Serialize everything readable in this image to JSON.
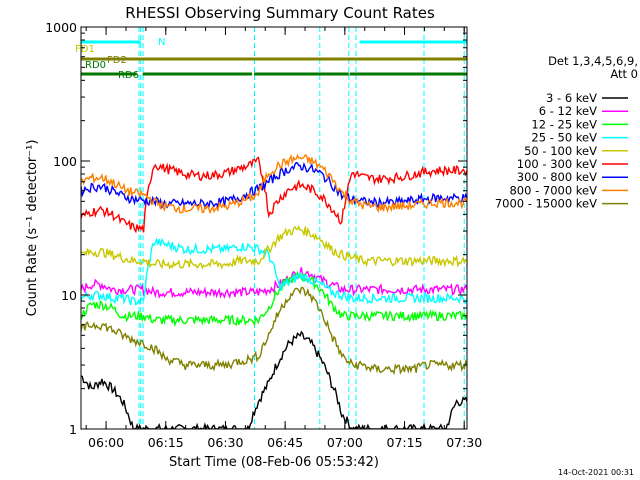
{
  "chart_data": {
    "type": "line",
    "title": "RHESSI Observing Summary Count Rates",
    "xlabel": "Start Time (08-Feb-06 05:53:42)",
    "ylabel": "Count Rate (s⁻¹ detector⁻¹)",
    "ylog": true,
    "ylim": [
      1,
      1000
    ],
    "xlim_minutes_after_start": [
      0,
      97
    ],
    "x_ticks": [
      {
        "label": "06:00",
        "min": 6.3
      },
      {
        "label": "06:15",
        "min": 21.3
      },
      {
        "label": "06:30",
        "min": 36.3
      },
      {
        "label": "06:45",
        "min": 51.3
      },
      {
        "label": "07:00",
        "min": 66.3
      },
      {
        "label": "07:15",
        "min": 81.3
      },
      {
        "label": "07:30",
        "min": 96.3
      }
    ],
    "y_ticks": [
      {
        "label": "1",
        "value": 1
      },
      {
        "label": "10",
        "value": 10
      },
      {
        "label": "100",
        "value": 100
      },
      {
        "label": "1000",
        "value": 1000
      }
    ],
    "legend_header": [
      "Det 1,3,4,5,6,9,",
      "Att 0"
    ],
    "legend_position": "right",
    "series": [
      {
        "name": "3 - 6 keV",
        "color": "#000000",
        "values": [
          2.5,
          2.0,
          2.3,
          2.0,
          1.6,
          1.0,
          1.0,
          1.0,
          1.0,
          1.0,
          1.0,
          1.0,
          1.0,
          1.0,
          1.0,
          1.0,
          1.0,
          1.6,
          2.2,
          3.3,
          4.4,
          5.0,
          4.4,
          3.3,
          2.2,
          1.3,
          1.0,
          1.0,
          1.0,
          1.0,
          1.0,
          1.0,
          1.0,
          1.0,
          1.0,
          1.0,
          1.6,
          1.6
        ]
      },
      {
        "name": "6 - 12 keV",
        "color": "#ff00ff",
        "values": [
          11,
          12,
          12,
          11,
          11,
          11,
          11,
          10.5,
          10.5,
          10.5,
          10.5,
          10.5,
          10.5,
          10.5,
          10.5,
          10.5,
          10.5,
          10.5,
          11,
          12,
          13.5,
          15,
          14.5,
          13,
          12,
          11,
          11,
          11,
          11,
          11,
          11,
          11,
          11,
          11,
          11,
          11,
          11,
          11
        ]
      },
      {
        "name": "12 - 25 keV",
        "color": "#00ff00",
        "values": [
          7,
          8.5,
          8.5,
          8,
          7,
          7,
          7,
          6.5,
          6.5,
          6.5,
          6.5,
          6.5,
          6.5,
          6.5,
          6.5,
          6.5,
          6.5,
          6.5,
          8,
          11,
          13,
          14,
          13,
          11,
          8.5,
          7,
          7,
          7,
          7,
          7,
          7,
          7,
          7,
          7,
          7,
          7,
          7,
          7
        ]
      },
      {
        "name": "25 - 50 keV",
        "color": "#00ffff",
        "values": [
          9.5,
          10,
          10,
          9.5,
          9.5,
          9,
          9,
          25,
          24,
          23,
          22,
          22,
          22,
          22,
          22,
          23,
          23,
          22,
          20,
          11.5,
          12.5,
          14,
          13,
          12,
          10.5,
          10,
          9.5,
          9.5,
          9.5,
          9.5,
          9.5,
          9.5,
          9.5,
          9.5,
          9.5,
          9.5,
          9.5,
          9.5
        ]
      },
      {
        "name": "50 - 100 keV",
        "color": "#c8c800",
        "values": [
          20,
          21,
          21,
          20,
          19,
          18,
          18,
          17,
          17,
          17,
          17,
          17,
          17,
          17,
          17,
          18,
          18,
          18,
          22,
          27,
          30,
          31,
          29,
          26,
          22,
          20,
          19,
          18,
          18,
          18,
          18,
          18,
          18,
          18,
          18,
          18,
          18,
          18
        ]
      },
      {
        "name": "100 - 300 keV",
        "color": "#ff0000",
        "values": [
          38,
          42,
          43,
          40,
          35,
          32,
          31,
          95,
          88,
          84,
          80,
          78,
          78,
          79,
          82,
          87,
          92,
          99,
          40,
          52,
          62,
          66,
          62,
          55,
          45,
          35,
          82,
          76,
          74,
          74,
          75,
          77,
          80,
          83,
          85,
          85,
          85,
          85
        ]
      },
      {
        "name": "300 - 800 keV",
        "color": "#0000ff",
        "values": [
          60,
          64,
          65,
          60,
          55,
          52,
          51,
          50,
          48,
          48,
          48,
          48,
          48,
          49,
          50,
          53,
          57,
          62,
          70,
          80,
          88,
          92,
          88,
          80,
          68,
          55,
          52,
          50,
          49,
          49,
          49,
          50,
          51,
          52,
          53,
          53,
          53,
          53
        ]
      },
      {
        "name": "800 - 7000 keV",
        "color": "#ff8000",
        "values": [
          70,
          75,
          75,
          70,
          62,
          58,
          56,
          50,
          46,
          45,
          44,
          44,
          44,
          45,
          46,
          49,
          52,
          57,
          82,
          93,
          101,
          106,
          101,
          90,
          75,
          58,
          50,
          47,
          46,
          45,
          46,
          46,
          47,
          48,
          49,
          49,
          49,
          49
        ]
      },
      {
        "name": "7000 - 15000 keV",
        "color": "#808000",
        "values": [
          5.5,
          6,
          6,
          5.5,
          5,
          4.6,
          4.4,
          4,
          3.4,
          3.2,
          3.0,
          3.0,
          3.0,
          3.0,
          3.0,
          3.2,
          3.3,
          3.5,
          5,
          7.5,
          10,
          11,
          10,
          7.5,
          5,
          3.5,
          3.0,
          3.0,
          2.8,
          2.8,
          2.8,
          2.8,
          2.8,
          3.0,
          3.0,
          3.0,
          3.0,
          3.0
        ]
      }
    ],
    "series_x_start": 0,
    "series_x_end": 97,
    "vertical_markers_min": [
      15,
      14.6,
      15.6,
      43.6,
      60.0,
      67.3,
      69.1,
      86.2,
      96.3
    ],
    "flags": [
      {
        "label": "N",
        "color": "#00ffff",
        "segments": [
          [
            0,
            15
          ],
          [
            70,
            97
          ]
        ]
      },
      {
        "label": "FD1",
        "color": "#c8c800",
        "segments": []
      },
      {
        "label": "FD2",
        "color": "#808000",
        "segments": [
          [
            0,
            97
          ]
        ]
      },
      {
        "label": "RD0",
        "color": "#007700",
        "segments": []
      },
      {
        "label": "RD6",
        "color": "#007700",
        "segments": [
          [
            0,
            14
          ],
          [
            15.5,
            43
          ],
          [
            43.5,
            67.3
          ],
          [
            67.5,
            97
          ]
        ]
      }
    ],
    "timestamp": "14-Oct-2021 00:31"
  }
}
